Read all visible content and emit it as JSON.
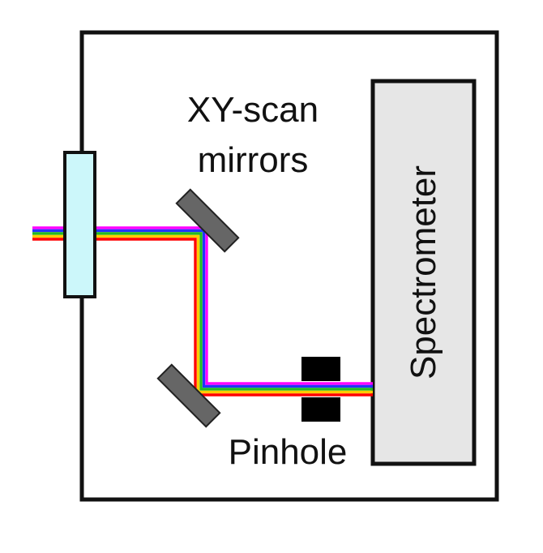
{
  "labels": {
    "scan_mirrors_line1": "XY-scan",
    "scan_mirrors_line2": "mirrors",
    "spectrometer": "Spectrometer",
    "pinhole": "Pinhole"
  },
  "colors": {
    "enclosure": "#111111",
    "window": "#ccf7fa",
    "mirror": "#666666",
    "pinhole": "#000000",
    "spectrometer_fill": "#e6e6e6",
    "beam_magenta": "#ff00ff",
    "beam_blue": "#2233ff",
    "beam_green": "#22bb22",
    "beam_yellow": "#ffcc00",
    "beam_red": "#ff0000"
  }
}
